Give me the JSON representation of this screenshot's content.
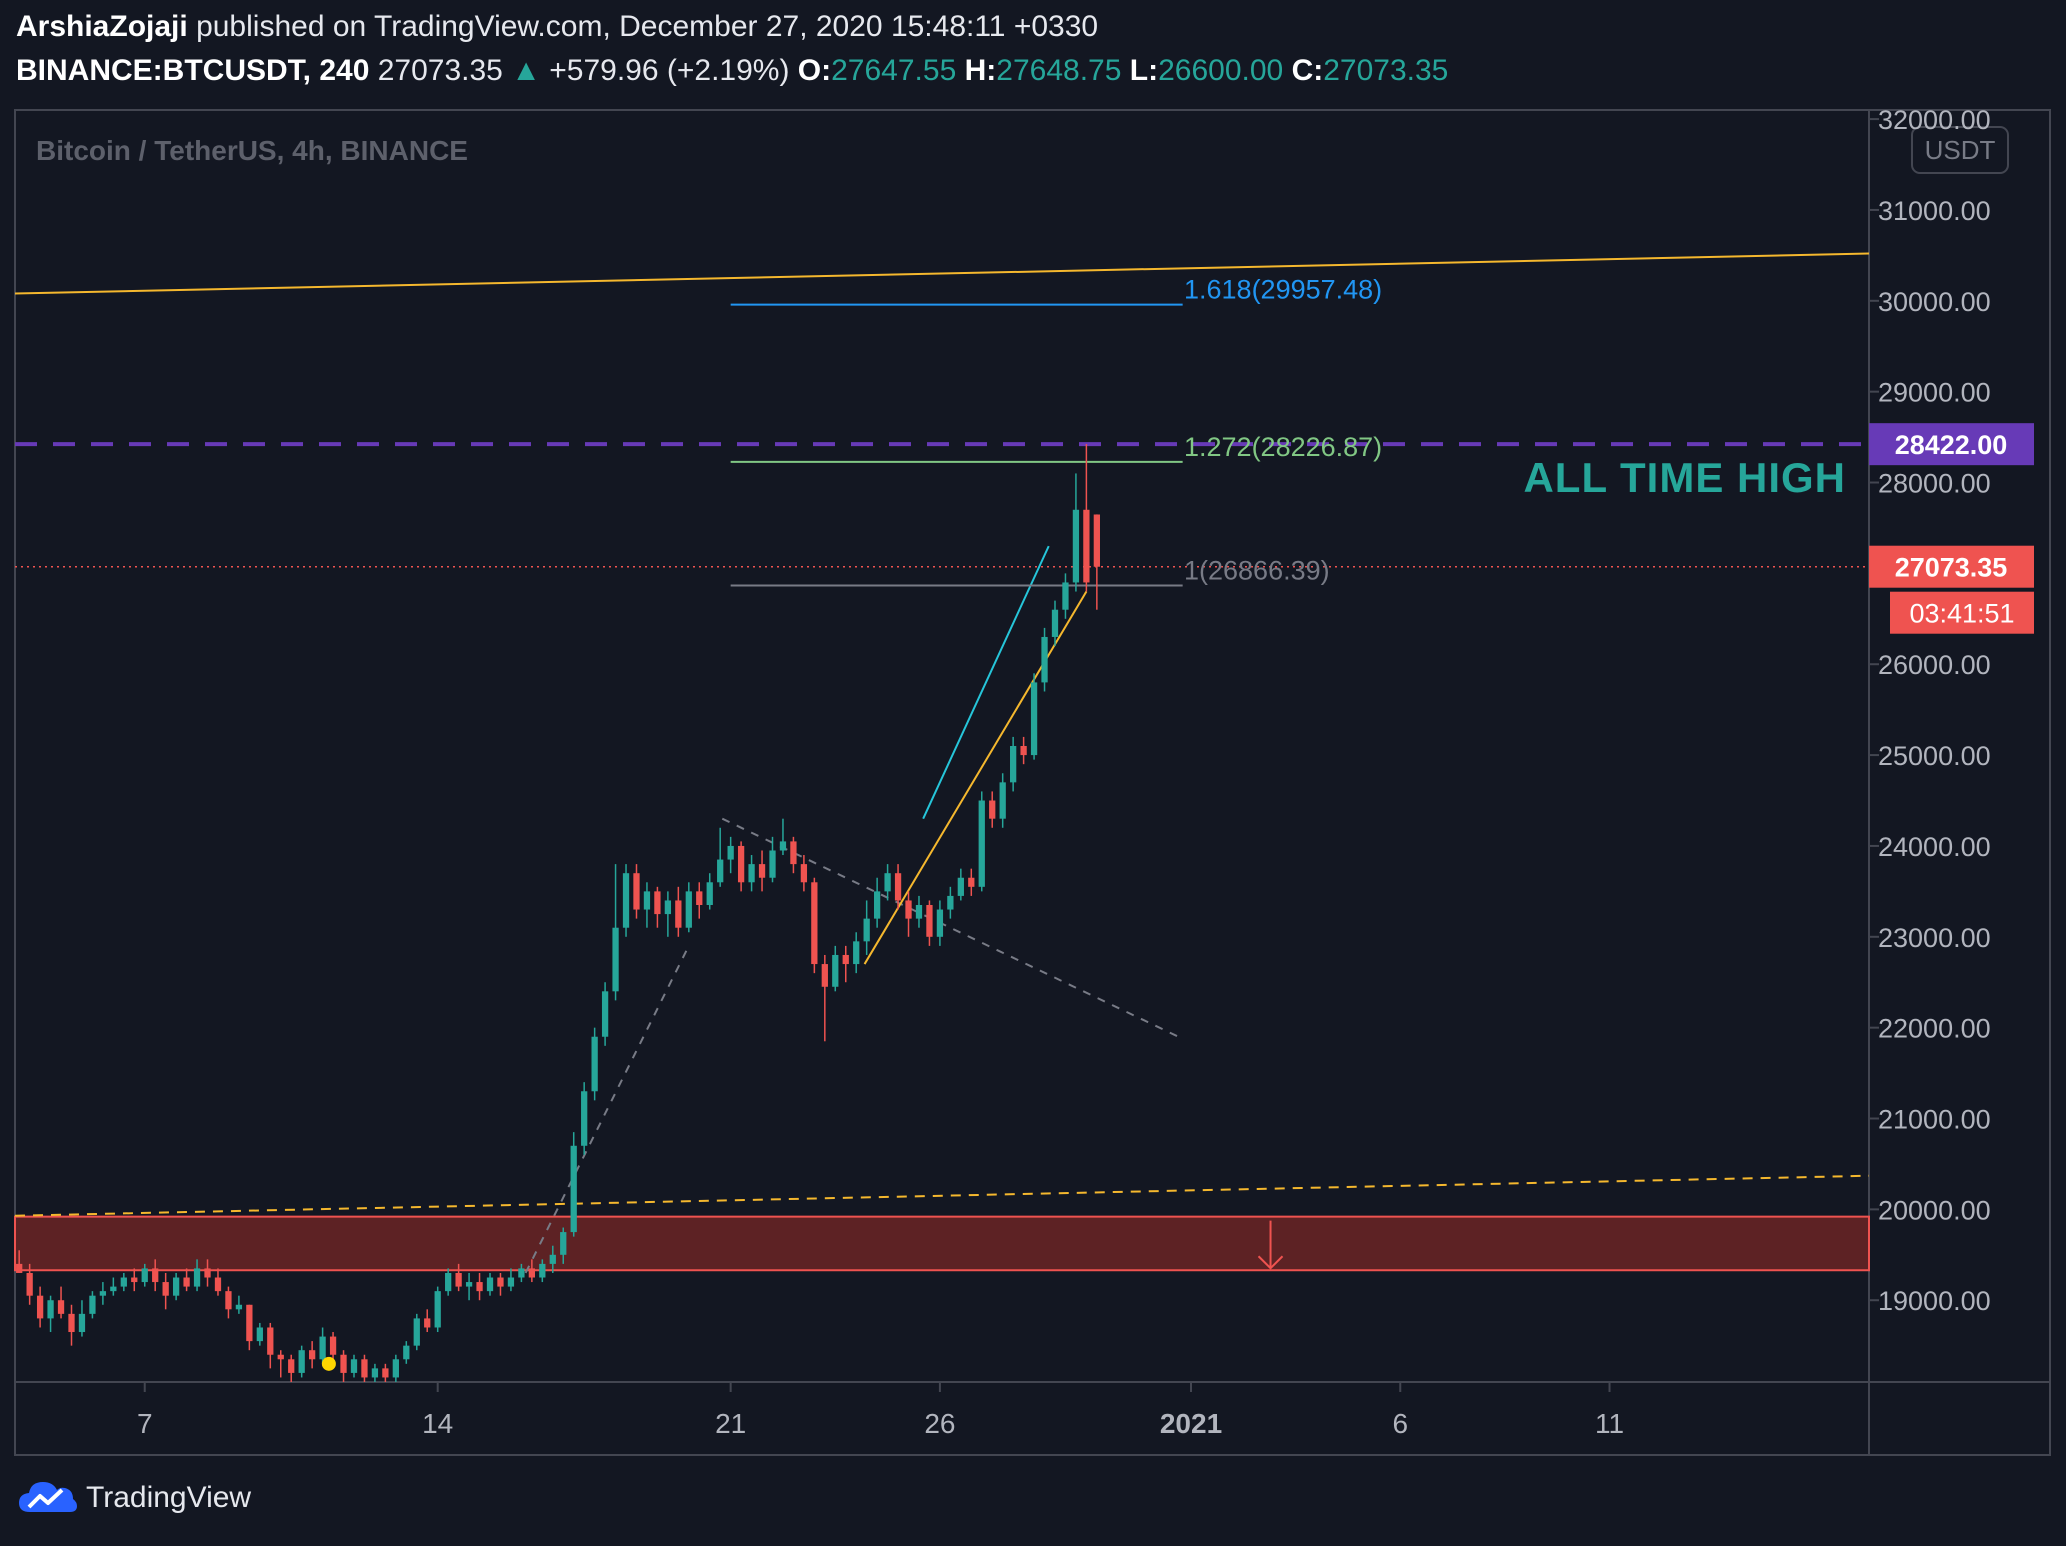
{
  "header": {
    "author": "ArshiaZojaji",
    "published": "published on TradingView.com, December 27, 2020 15:48:11 +0330",
    "symbol": "BINANCE:BTCUSDT, 240",
    "last": "27073.35",
    "change": "+579.96 (+2.19%)",
    "o_label": "O:",
    "o": "27647.55",
    "h_label": "H:",
    "h": "27648.75",
    "l_label": "L:",
    "l": "26600.00",
    "c_label": "C:",
    "c": "27073.35"
  },
  "footer": {
    "brand": "TradingView",
    "icon": "tradingview-cloud-icon"
  },
  "colors": {
    "background": "#131722",
    "up": "#26a69a",
    "down": "#ef5350",
    "resistance_line": "#f5b82e",
    "ath_line": "#673ab7",
    "fib_1618": "#2196f3",
    "fib_1272": "#81c784",
    "fib_1": "#787b86",
    "zone": "#6b2424"
  },
  "chart_data": {
    "type": "candlestick",
    "title": "Bitcoin / TetherUS, 4h, BINANCE",
    "currency": "USDT",
    "ylim": [
      18100,
      32100
    ],
    "y_ticks": [
      "32000.00",
      "31000.00",
      "30000.00",
      "29000.00",
      "28000.00",
      "27000.00",
      "26000.00",
      "25000.00",
      "24000.00",
      "23000.00",
      "22000.00",
      "21000.00",
      "20000.00",
      "19000.00"
    ],
    "x_ticks": [
      {
        "day": 7,
        "label": "7"
      },
      {
        "day": 14,
        "label": "14"
      },
      {
        "day": 21,
        "label": "21"
      },
      {
        "day": 26,
        "label": "26"
      },
      {
        "day": 32,
        "label": "2021"
      },
      {
        "day": 37,
        "label": "6"
      },
      {
        "day": 42,
        "label": "11"
      }
    ],
    "x_range_days": [
      3.9,
      48.2
    ],
    "price_labels": [
      {
        "value": 28422.0,
        "label": "28422.00",
        "color": "#673ab7"
      },
      {
        "value": 27073.35,
        "label": "27073.35",
        "color": "#ef5350"
      }
    ],
    "countdown": "03:41:51",
    "annotation": {
      "text": "ALL TIME HIGH",
      "color": "#26a69a"
    },
    "fib_levels": [
      {
        "label": "1.618(29957.48)",
        "value": 29957.48,
        "color": "#2196f3"
      },
      {
        "label": "1.272(28226.87)",
        "value": 28226.87,
        "color": "#81c784"
      },
      {
        "label": "1(26866.39)",
        "value": 26866.39,
        "color": "#787b86"
      }
    ],
    "fib_range_days": [
      21.0,
      31.8
    ],
    "lines": [
      {
        "name": "resistance",
        "points": [
          [
            3.9,
            30080
          ],
          [
            48.2,
            30520
          ]
        ],
        "color": "#f5b82e",
        "style": "solid"
      },
      {
        "name": "ath",
        "points": [
          [
            3.9,
            28422
          ],
          [
            48.2,
            28422
          ]
        ],
        "color": "#673ab7",
        "style": "dashed"
      },
      {
        "name": "support",
        "points": [
          [
            3.9,
            19930
          ],
          [
            48.2,
            20370
          ]
        ],
        "color": "#f5b82e",
        "style": "dashed"
      },
      {
        "name": "impulse",
        "points": [
          [
            16.1,
            19300
          ],
          [
            20.0,
            22900
          ]
        ],
        "color": "#787b86",
        "style": "dotted"
      },
      {
        "name": "correction",
        "points": [
          [
            20.8,
            24300
          ],
          [
            31.7,
            21900
          ]
        ],
        "color": "#787b86",
        "style": "dotted"
      },
      {
        "name": "trend-teal",
        "points": [
          [
            25.6,
            24300
          ],
          [
            28.6,
            27300
          ]
        ],
        "color": "#26c6da",
        "style": "solid"
      },
      {
        "name": "trend-yellow",
        "points": [
          [
            24.2,
            22700
          ],
          [
            29.5,
            26800
          ]
        ],
        "color": "#f5b82e",
        "style": "solid"
      }
    ],
    "zone": {
      "low": 19330,
      "high": 19920,
      "from_day": 3.9,
      "to_day": 48.2,
      "arrow_day": 33.9
    },
    "marker": {
      "day": 11.4,
      "value": 18300,
      "color": "#ffd600"
    },
    "candles": [
      [
        4.0,
        19400,
        19300,
        19550,
        19300
      ],
      [
        4.25,
        19300,
        19050,
        19400,
        18950
      ],
      [
        4.5,
        19050,
        18800,
        19150,
        18700
      ],
      [
        4.75,
        18800,
        19000,
        19050,
        18650
      ],
      [
        5.0,
        19000,
        18850,
        19150,
        18800
      ],
      [
        5.25,
        18850,
        18650,
        18950,
        18500
      ],
      [
        5.5,
        18650,
        18850,
        19000,
        18600
      ],
      [
        5.75,
        18850,
        19050,
        19100,
        18800
      ],
      [
        6.0,
        19050,
        19100,
        19200,
        18950
      ],
      [
        6.25,
        19100,
        19150,
        19250,
        19050
      ],
      [
        6.5,
        19150,
        19250,
        19300,
        19100
      ],
      [
        6.75,
        19250,
        19200,
        19350,
        19100
      ],
      [
        7.0,
        19200,
        19350,
        19400,
        19150
      ],
      [
        7.25,
        19350,
        19200,
        19450,
        19100
      ],
      [
        7.5,
        19200,
        19050,
        19300,
        18900
      ],
      [
        7.75,
        19050,
        19250,
        19300,
        19000
      ],
      [
        8.0,
        19250,
        19150,
        19350,
        19100
      ],
      [
        8.25,
        19150,
        19350,
        19450,
        19100
      ],
      [
        8.5,
        19350,
        19250,
        19450,
        19150
      ],
      [
        8.75,
        19250,
        19100,
        19350,
        19050
      ],
      [
        9.0,
        19100,
        18900,
        19150,
        18800
      ],
      [
        9.25,
        18900,
        18950,
        19050,
        18850
      ],
      [
        9.5,
        18950,
        18550,
        18950,
        18450
      ],
      [
        9.75,
        18550,
        18700,
        18750,
        18500
      ],
      [
        10.0,
        18700,
        18400,
        18750,
        18250
      ],
      [
        10.25,
        18400,
        18350,
        18450,
        18150
      ],
      [
        10.5,
        18350,
        18200,
        18400,
        18100
      ],
      [
        10.75,
        18200,
        18450,
        18500,
        18150
      ],
      [
        11.0,
        18450,
        18350,
        18550,
        18250
      ],
      [
        11.25,
        18350,
        18600,
        18700,
        18300
      ],
      [
        11.5,
        18600,
        18400,
        18650,
        18300
      ],
      [
        11.75,
        18400,
        18200,
        18450,
        18100
      ],
      [
        12.0,
        18200,
        18350,
        18400,
        18150
      ],
      [
        12.25,
        18350,
        18150,
        18400,
        18100
      ],
      [
        12.5,
        18150,
        18250,
        18300,
        18100
      ],
      [
        12.75,
        18250,
        18150,
        18300,
        18100
      ],
      [
        13.0,
        18150,
        18350,
        18400,
        18100
      ],
      [
        13.25,
        18350,
        18500,
        18550,
        18300
      ],
      [
        13.5,
        18500,
        18800,
        18850,
        18450
      ],
      [
        13.75,
        18800,
        18700,
        18900,
        18650
      ],
      [
        14.0,
        18700,
        19100,
        19150,
        18650
      ],
      [
        14.25,
        19100,
        19300,
        19350,
        19050
      ],
      [
        14.5,
        19300,
        19150,
        19400,
        19100
      ],
      [
        14.75,
        19150,
        19200,
        19300,
        19000
      ],
      [
        15.0,
        19200,
        19100,
        19300,
        19000
      ],
      [
        15.25,
        19100,
        19250,
        19300,
        19050
      ],
      [
        15.5,
        19250,
        19150,
        19300,
        19050
      ],
      [
        15.75,
        19150,
        19250,
        19350,
        19100
      ],
      [
        16.0,
        19250,
        19350,
        19400,
        19200
      ],
      [
        16.25,
        19350,
        19250,
        19450,
        19200
      ],
      [
        16.5,
        19250,
        19400,
        19450,
        19200
      ],
      [
        16.75,
        19400,
        19500,
        19600,
        19300
      ],
      [
        17.0,
        19500,
        19750,
        19800,
        19400
      ],
      [
        17.25,
        19750,
        20700,
        20850,
        19700
      ],
      [
        17.5,
        20700,
        21300,
        21400,
        20600
      ],
      [
        17.75,
        21300,
        21900,
        22000,
        21200
      ],
      [
        18.0,
        21900,
        22400,
        22500,
        21800
      ],
      [
        18.25,
        22400,
        23100,
        23800,
        22300
      ],
      [
        18.5,
        23100,
        23700,
        23800,
        23000
      ],
      [
        18.75,
        23700,
        23300,
        23800,
        23200
      ],
      [
        19.0,
        23300,
        23500,
        23600,
        23100
      ],
      [
        19.25,
        23500,
        23250,
        23550,
        23100
      ],
      [
        19.5,
        23250,
        23400,
        23500,
        23000
      ],
      [
        19.75,
        23400,
        23100,
        23550,
        23000
      ],
      [
        20.0,
        23100,
        23500,
        23600,
        23050
      ],
      [
        20.25,
        23500,
        23350,
        23600,
        23200
      ],
      [
        20.5,
        23350,
        23600,
        23700,
        23300
      ],
      [
        20.75,
        23600,
        23850,
        24200,
        23550
      ],
      [
        21.0,
        23850,
        24000,
        24100,
        23700
      ],
      [
        21.25,
        24000,
        23600,
        24050,
        23500
      ],
      [
        21.5,
        23600,
        23800,
        23900,
        23500
      ],
      [
        21.75,
        23800,
        23650,
        23950,
        23500
      ],
      [
        22.0,
        23650,
        23950,
        24100,
        23600
      ],
      [
        22.25,
        23950,
        24050,
        24300,
        23900
      ],
      [
        22.5,
        24050,
        23800,
        24100,
        23700
      ],
      [
        22.75,
        23800,
        23600,
        23900,
        23500
      ],
      [
        23.0,
        23600,
        22700,
        23650,
        22600
      ],
      [
        23.25,
        22700,
        22450,
        22800,
        21850
      ],
      [
        23.5,
        22450,
        22800,
        22900,
        22400
      ],
      [
        23.75,
        22800,
        22700,
        22900,
        22500
      ],
      [
        24.0,
        22700,
        22950,
        23050,
        22600
      ],
      [
        24.25,
        22950,
        23200,
        23400,
        22800
      ],
      [
        24.5,
        23200,
        23500,
        23650,
        23100
      ],
      [
        24.75,
        23500,
        23700,
        23800,
        23400
      ],
      [
        25.0,
        23700,
        23400,
        23800,
        23300
      ],
      [
        25.25,
        23400,
        23200,
        23500,
        23000
      ],
      [
        25.5,
        23200,
        23350,
        23450,
        23100
      ],
      [
        25.75,
        23350,
        23000,
        23400,
        22900
      ],
      [
        26.0,
        23000,
        23300,
        23400,
        22900
      ],
      [
        26.25,
        23300,
        23450,
        23550,
        23200
      ],
      [
        26.5,
        23450,
        23650,
        23750,
        23400
      ],
      [
        26.75,
        23650,
        23550,
        23750,
        23450
      ],
      [
        27.0,
        23550,
        24500,
        24600,
        23500
      ],
      [
        27.25,
        24500,
        24300,
        24600,
        24200
      ],
      [
        27.5,
        24300,
        24700,
        24800,
        24200
      ],
      [
        27.75,
        24700,
        25100,
        25200,
        24600
      ],
      [
        28.0,
        25100,
        25000,
        25200,
        24900
      ],
      [
        28.25,
        25000,
        25800,
        25900,
        24950
      ],
      [
        28.5,
        25800,
        26300,
        26400,
        25700
      ],
      [
        28.75,
        26300,
        26600,
        26700,
        26200
      ],
      [
        29.0,
        26600,
        26900,
        27000,
        26500
      ],
      [
        29.25,
        26900,
        27700,
        28100,
        26800
      ],
      [
        29.5,
        27700,
        26900,
        28422,
        26800
      ],
      [
        29.75,
        27648,
        27073,
        27649,
        26600
      ]
    ]
  }
}
